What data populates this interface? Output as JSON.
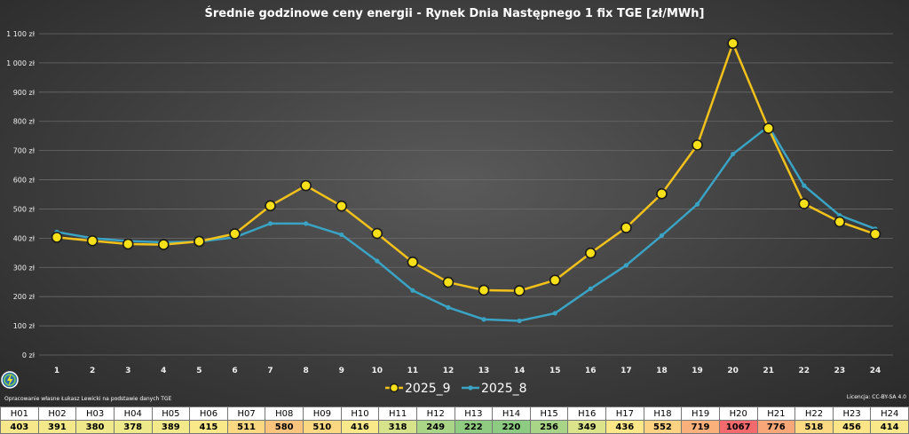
{
  "colors": {
    "series1": "#f2c21b",
    "series2": "#3aa3c4",
    "marker_fill": "#f7e017",
    "marker_stroke": "#1a1a1a",
    "grid": "#6a6a6a"
  },
  "footer": {
    "source": "Opracowanie własne Łukasz Lewicki na podstawie danych TGE",
    "license": "Licencja: CC-BY-SA 4.0",
    "logo_icon": "lightning-globe-icon"
  },
  "chart_data": {
    "type": "line",
    "title": "Średnie godzinowe ceny energii - Rynek Dnia Następnego 1 fix TGE [zł/MWh]",
    "x": [
      1,
      2,
      3,
      4,
      5,
      6,
      7,
      8,
      9,
      10,
      11,
      12,
      13,
      14,
      15,
      16,
      17,
      18,
      19,
      20,
      21,
      22,
      23,
      24
    ],
    "x_tick_labels": [
      "1",
      "2",
      "3",
      "4",
      "5",
      "6",
      "7",
      "8",
      "9",
      "10",
      "11",
      "12",
      "13",
      "14",
      "15",
      "16",
      "17",
      "18",
      "19",
      "20",
      "21",
      "22",
      "23",
      "24"
    ],
    "ylim": [
      0,
      1100
    ],
    "y_ticks": [
      0,
      100,
      200,
      300,
      400,
      500,
      600,
      700,
      800,
      900,
      1000,
      1100
    ],
    "y_tick_labels": [
      "0 zł",
      "100 zł",
      "200 zł",
      "300 zł",
      "400 zł",
      "500 zł",
      "600 zł",
      "700 zł",
      "800 zł",
      "900 zł",
      "1 000 zł",
      "1 100 zł"
    ],
    "grid": true,
    "legend_position": "bottom",
    "series": [
      {
        "name": "2025_9",
        "color": "#f2c21b",
        "marker": "large-circle",
        "values": [
          403,
          391,
          380,
          378,
          389,
          415,
          511,
          580,
          510,
          416,
          318,
          249,
          222,
          220,
          256,
          349,
          436,
          552,
          719,
          1067,
          776,
          518,
          456,
          414
        ]
      },
      {
        "name": "2025_8",
        "color": "#3aa3c4",
        "marker": "small-circle",
        "values": [
          421,
          400,
          390,
          386,
          388,
          403,
          450,
          450,
          412,
          322,
          221,
          163,
          122,
          117,
          143,
          227,
          307,
          409,
          516,
          688,
          783,
          580,
          478,
          432
        ]
      }
    ]
  },
  "table": {
    "headers": [
      "H01",
      "H02",
      "H03",
      "H04",
      "H05",
      "H06",
      "H07",
      "H08",
      "H09",
      "H10",
      "H11",
      "H12",
      "H13",
      "H14",
      "H15",
      "H16",
      "H17",
      "H18",
      "H19",
      "H20",
      "H21",
      "H22",
      "H23",
      "H24"
    ],
    "values": [
      "403",
      "391",
      "380",
      "378",
      "389",
      "415",
      "511",
      "580",
      "510",
      "416",
      "318",
      "249",
      "222",
      "220",
      "256",
      "349",
      "436",
      "552",
      "719",
      "1067",
      "776",
      "518",
      "456",
      "414"
    ],
    "cell_colors": [
      "#f6e88a",
      "#f3e98b",
      "#efe98b",
      "#eee98b",
      "#f2e98b",
      "#f8e88a",
      "#fcd882",
      "#fbc47e",
      "#fcd882",
      "#f8e88a",
      "#d7e38a",
      "#a9d587",
      "#8fcc82",
      "#8dcb82",
      "#a7d486",
      "#dbe48a",
      "#fde788",
      "#fbd182",
      "#f9b07a",
      "#f26a6e",
      "#f8a878",
      "#fcd982",
      "#fde486",
      "#f8e88a"
    ]
  }
}
